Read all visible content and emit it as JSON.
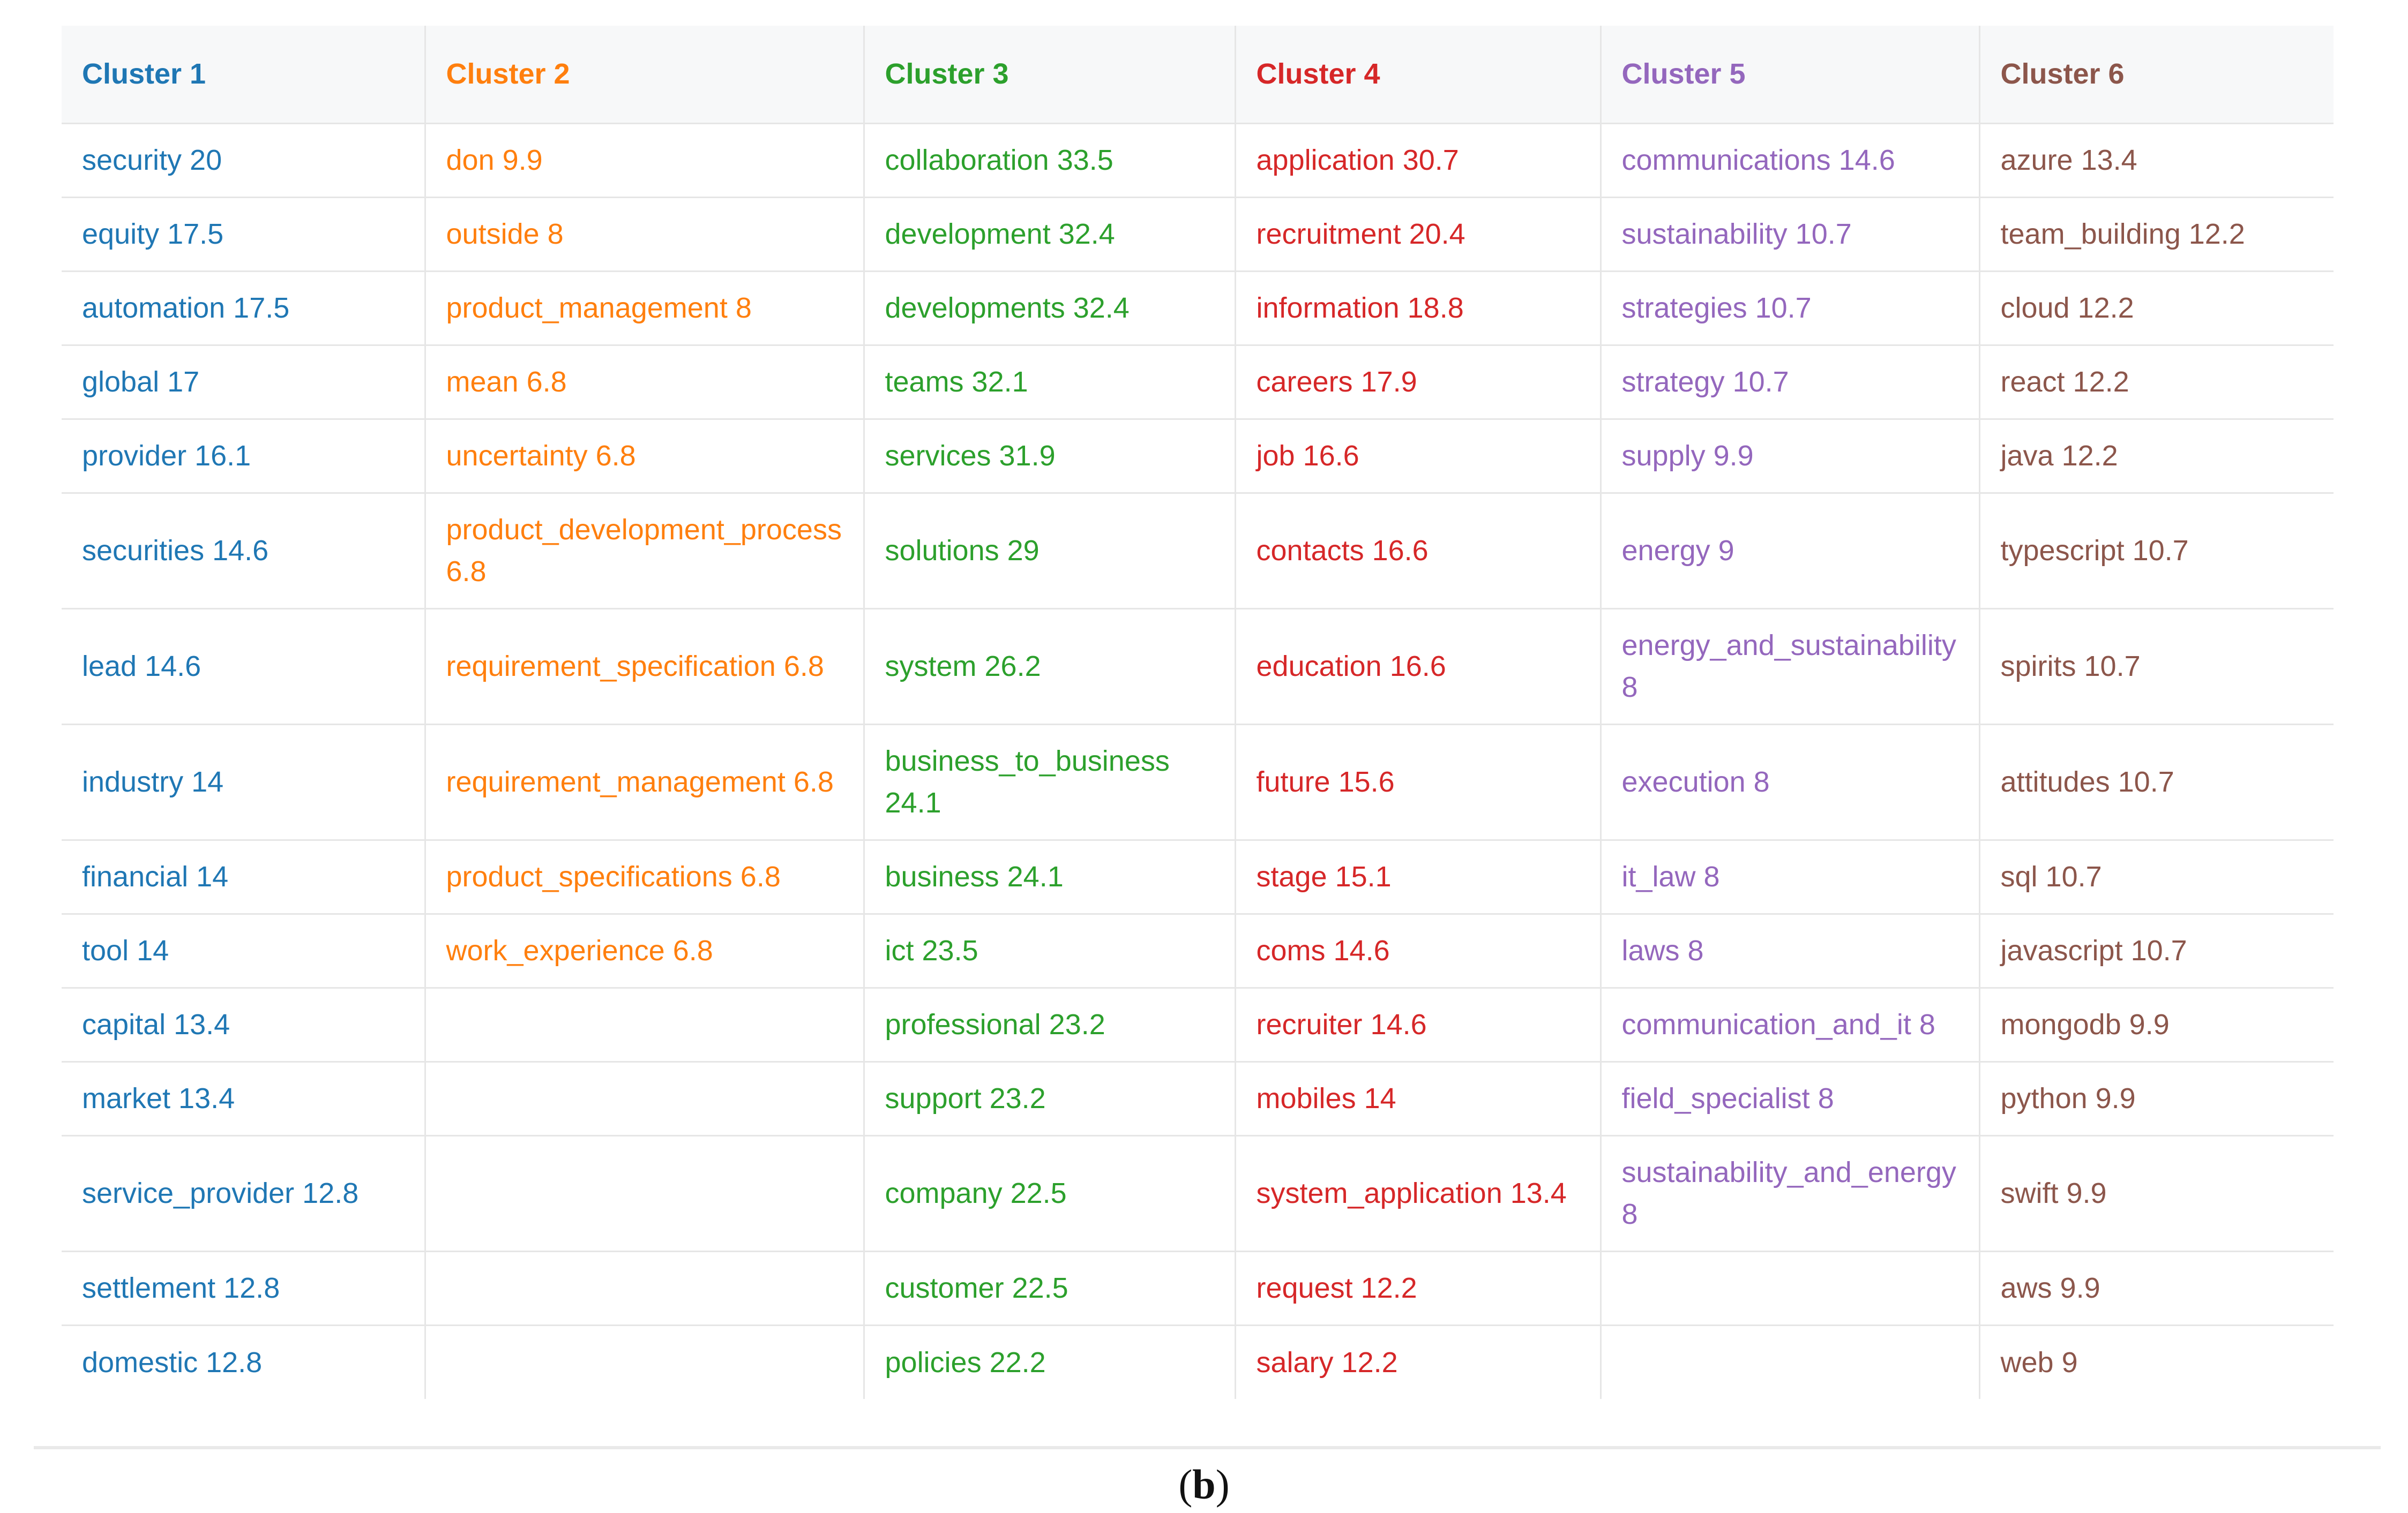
{
  "chart_data": {
    "type": "table",
    "columns": [
      "Cluster 1",
      "Cluster 2",
      "Cluster 3",
      "Cluster 4",
      "Cluster 5",
      "Cluster 6"
    ],
    "rows": [
      [
        "security 20",
        "don 9.9",
        "collaboration 33.5",
        "application 30.7",
        "communications 14.6",
        "azure 13.4"
      ],
      [
        "equity 17.5",
        "outside 8",
        "development 32.4",
        "recruitment 20.4",
        "sustainability 10.7",
        "team_building 12.2"
      ],
      [
        "automation 17.5",
        "product_management 8",
        "developments 32.4",
        "information 18.8",
        "strategies 10.7",
        "cloud 12.2"
      ],
      [
        "global 17",
        "mean 6.8",
        "teams 32.1",
        "careers 17.9",
        "strategy 10.7",
        "react 12.2"
      ],
      [
        "provider 16.1",
        "uncertainty 6.8",
        "services 31.9",
        "job 16.6",
        "supply 9.9",
        "java 12.2"
      ],
      [
        "securities 14.6",
        "product_development_process 6.8",
        "solutions 29",
        "contacts 16.6",
        "energy 9",
        "typescript 10.7"
      ],
      [
        "lead 14.6",
        "requirement_specification 6.8",
        "system 26.2",
        "education 16.6",
        "energy_and_sustainability 8",
        "spirits 10.7"
      ],
      [
        "industry 14",
        "requirement_management 6.8",
        "business_to_business 24.1",
        "future 15.6",
        "execution 8",
        "attitudes 10.7"
      ],
      [
        "financial 14",
        "product_specifications 6.8",
        "business 24.1",
        "stage 15.1",
        "it_law 8",
        "sql 10.7"
      ],
      [
        "tool 14",
        "work_experience 6.8",
        "ict 23.5",
        "coms 14.6",
        "laws 8",
        "javascript 10.7"
      ],
      [
        "capital 13.4",
        "",
        "professional 23.2",
        "recruiter 14.6",
        "communication_and_it 8",
        "mongodb 9.9"
      ],
      [
        "market 13.4",
        "",
        "support 23.2",
        "mobiles 14",
        "field_specialist 8",
        "python 9.9"
      ],
      [
        "service_provider 12.8",
        "",
        "company 22.5",
        "system_application 13.4",
        "sustainability_and_energy 8",
        "swift 9.9"
      ],
      [
        "settlement 12.8",
        "",
        "customer 22.5",
        "request 12.2",
        "",
        "aws 9.9"
      ],
      [
        "domestic 12.8",
        "",
        "policies 22.2",
        "salary 12.2",
        "",
        "web 9"
      ]
    ],
    "colors": [
      "#1f77b4",
      "#ff7f0e",
      "#2ca02c",
      "#d62728",
      "#9467bd",
      "#8c564b"
    ]
  },
  "caption": {
    "open": "(",
    "letter": "b",
    "close": ")"
  }
}
